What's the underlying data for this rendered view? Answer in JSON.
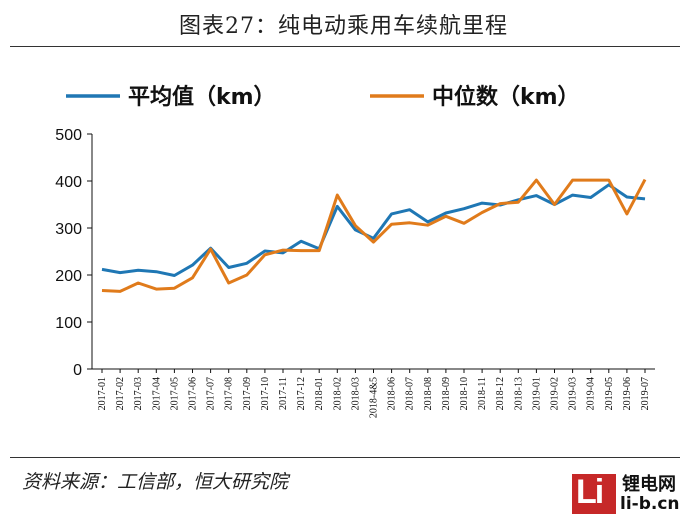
{
  "header": {
    "title": "图表27：纯电动乘用车续航里程"
  },
  "footer": {
    "source": "资料来源：工信部，恒大研究院"
  },
  "watermark": {
    "logo_text": "Li",
    "site_cn": "锂电网",
    "site_url": "li-b.cn"
  },
  "colors": {
    "mean": "#1f77b4",
    "median": "#e07b1b",
    "axis": "#111111"
  },
  "chart_data": {
    "type": "line",
    "title": "图表27：纯电动乘用车续航里程",
    "xlabel": "",
    "ylabel": "",
    "ylim": [
      0,
      500
    ],
    "yticks": [
      0,
      100,
      200,
      300,
      400,
      500
    ],
    "grid": false,
    "legend": "top",
    "x": [
      "2017-01",
      "2017-02",
      "2017-03",
      "2017-04",
      "2017-05",
      "2017-06",
      "2017-07",
      "2017-08",
      "2017-09",
      "2017-10",
      "2017-11",
      "2017-12",
      "2018-01",
      "2018-02",
      "2018-03",
      "2018-4&5",
      "2018-06",
      "2018-07",
      "2018-08",
      "2018-09",
      "2018-10",
      "2018-11",
      "2018-12",
      "2018-13",
      "2019-01",
      "2019-02",
      "2019-03",
      "2019-04",
      "2019-05",
      "2019-06",
      "2019-07"
    ],
    "xticks_shown": [
      "2017-01",
      "2017-02",
      "2017-03",
      "2017-04",
      "2017-05",
      "2017-06",
      "2017-07",
      "2017-08",
      "2017-09",
      "2017-10",
      "2017-11",
      "2017-12",
      "2018-01",
      "2018-02",
      "2018-03",
      "2018-4&5",
      "2018-06",
      "2018-07",
      "2018-08",
      "2018-09",
      "2018-10",
      "2018-11",
      "2018-12",
      "2018-13",
      "2019-01",
      "2019-02",
      "2019-03",
      "2019-04",
      "2019-05",
      "2019-06",
      "2019-07"
    ],
    "series": [
      {
        "name": "平均值（km）",
        "color": "#1f77b4",
        "values": [
          212,
          205,
          210,
          207,
          199,
          221,
          257,
          216,
          225,
          251,
          247,
          272,
          256,
          346,
          296,
          278,
          330,
          339,
          313,
          332,
          341,
          353,
          349,
          360,
          369,
          350,
          370,
          365,
          392,
          366,
          362
        ]
      },
      {
        "name": "中位数（km）",
        "color": "#e07b1b",
        "values": [
          167,
          165,
          183,
          170,
          172,
          194,
          255,
          183,
          200,
          243,
          253,
          252,
          252,
          370,
          305,
          270,
          308,
          311,
          306,
          325,
          310,
          333,
          352,
          355,
          402,
          350,
          402,
          402,
          402,
          330,
          403
        ]
      }
    ]
  }
}
